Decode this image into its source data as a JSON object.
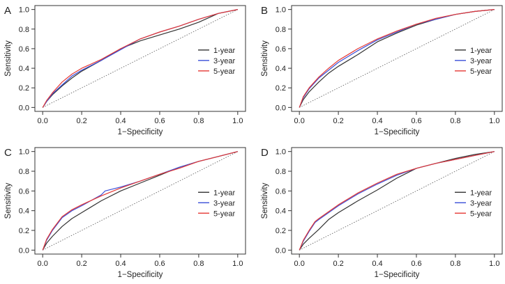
{
  "chart_data": [
    {
      "panel": "A",
      "type": "line",
      "xlabel": "1−Specificity",
      "ylabel": "Sensitivity",
      "xlim": [
        0,
        1
      ],
      "ylim": [
        0,
        1
      ],
      "xticks": [
        "0.0",
        "0.2",
        "0.4",
        "0.6",
        "0.8",
        "1.0"
      ],
      "yticks": [
        "0.0",
        "0.2",
        "0.4",
        "0.6",
        "0.8",
        "1.0"
      ],
      "grid": false,
      "legend": "right",
      "reference_line": "diagonal-dotted",
      "series": [
        {
          "name": "1-year",
          "color": "#333333",
          "x": [
            0,
            0.02,
            0.05,
            0.1,
            0.15,
            0.2,
            0.3,
            0.4,
            0.5,
            0.6,
            0.7,
            0.8,
            0.9,
            1.0
          ],
          "y": [
            0,
            0.06,
            0.13,
            0.22,
            0.3,
            0.37,
            0.48,
            0.6,
            0.68,
            0.74,
            0.8,
            0.87,
            0.96,
            1.0
          ]
        },
        {
          "name": "3-year",
          "color": "#3b4fd8",
          "x": [
            0,
            0.02,
            0.05,
            0.1,
            0.15,
            0.2,
            0.3,
            0.4,
            0.5,
            0.6,
            0.7,
            0.8,
            0.9,
            1.0
          ],
          "y": [
            0,
            0.06,
            0.14,
            0.23,
            0.32,
            0.38,
            0.48,
            0.59,
            0.7,
            0.77,
            0.83,
            0.9,
            0.96,
            1.0
          ]
        },
        {
          "name": "5-year",
          "color": "#e53935",
          "x": [
            0,
            0.02,
            0.05,
            0.1,
            0.15,
            0.2,
            0.3,
            0.4,
            0.5,
            0.6,
            0.7,
            0.8,
            0.9,
            1.0
          ],
          "y": [
            0,
            0.07,
            0.15,
            0.26,
            0.34,
            0.4,
            0.49,
            0.6,
            0.7,
            0.77,
            0.83,
            0.9,
            0.96,
            1.0
          ]
        }
      ]
    },
    {
      "panel": "B",
      "type": "line",
      "xlabel": "1−Specificity",
      "ylabel": "Sensitivity",
      "xlim": [
        0,
        1
      ],
      "ylim": [
        0,
        1
      ],
      "xticks": [
        "0.0",
        "0.2",
        "0.4",
        "0.6",
        "0.8",
        "1.0"
      ],
      "yticks": [
        "0.0",
        "0.2",
        "0.4",
        "0.6",
        "0.8",
        "1.0"
      ],
      "grid": false,
      "legend": "right",
      "reference_line": "diagonal-dotted",
      "series": [
        {
          "name": "1-year",
          "color": "#333333",
          "x": [
            0,
            0.02,
            0.05,
            0.1,
            0.15,
            0.2,
            0.3,
            0.4,
            0.5,
            0.6,
            0.7,
            0.8,
            0.9,
            1.0
          ],
          "y": [
            0,
            0.08,
            0.16,
            0.26,
            0.35,
            0.42,
            0.54,
            0.67,
            0.76,
            0.84,
            0.9,
            0.95,
            0.98,
            1.0
          ]
        },
        {
          "name": "3-year",
          "color": "#3b4fd8",
          "x": [
            0,
            0.02,
            0.05,
            0.1,
            0.15,
            0.2,
            0.3,
            0.4,
            0.5,
            0.6,
            0.7,
            0.8,
            0.9,
            1.0
          ],
          "y": [
            0,
            0.1,
            0.19,
            0.3,
            0.38,
            0.46,
            0.58,
            0.69,
            0.77,
            0.85,
            0.9,
            0.95,
            0.98,
            1.0
          ]
        },
        {
          "name": "5-year",
          "color": "#e53935",
          "x": [
            0,
            0.02,
            0.05,
            0.1,
            0.15,
            0.2,
            0.3,
            0.4,
            0.5,
            0.6,
            0.7,
            0.8,
            0.9,
            1.0
          ],
          "y": [
            0,
            0.11,
            0.2,
            0.31,
            0.4,
            0.48,
            0.6,
            0.7,
            0.78,
            0.85,
            0.91,
            0.95,
            0.98,
            1.0
          ]
        }
      ]
    },
    {
      "panel": "C",
      "type": "line",
      "xlabel": "1−Specificity",
      "ylabel": "Sensitivity",
      "xlim": [
        0,
        1
      ],
      "ylim": [
        0,
        1
      ],
      "xticks": [
        "0.0",
        "0.2",
        "0.4",
        "0.6",
        "0.8",
        "1.0"
      ],
      "yticks": [
        "0.0",
        "0.2",
        "0.4",
        "0.6",
        "0.8",
        "1.0"
      ],
      "grid": false,
      "legend": "right",
      "reference_line": "diagonal-dotted",
      "series": [
        {
          "name": "1-year",
          "color": "#333333",
          "x": [
            0,
            0.02,
            0.05,
            0.1,
            0.15,
            0.2,
            0.3,
            0.4,
            0.5,
            0.6,
            0.7,
            0.8,
            0.9,
            1.0
          ],
          "y": [
            0,
            0.07,
            0.14,
            0.24,
            0.32,
            0.38,
            0.5,
            0.6,
            0.68,
            0.76,
            0.84,
            0.9,
            0.95,
            1.0
          ]
        },
        {
          "name": "3-year",
          "color": "#3b4fd8",
          "x": [
            0,
            0.02,
            0.05,
            0.1,
            0.15,
            0.2,
            0.3,
            0.32,
            0.4,
            0.5,
            0.6,
            0.7,
            0.8,
            0.9,
            1.0
          ],
          "y": [
            0,
            0.1,
            0.2,
            0.33,
            0.4,
            0.45,
            0.56,
            0.6,
            0.64,
            0.7,
            0.77,
            0.84,
            0.9,
            0.95,
            1.0
          ]
        },
        {
          "name": "5-year",
          "color": "#e53935",
          "x": [
            0,
            0.02,
            0.05,
            0.1,
            0.15,
            0.2,
            0.3,
            0.4,
            0.5,
            0.6,
            0.7,
            0.8,
            0.9,
            1.0
          ],
          "y": [
            0,
            0.11,
            0.21,
            0.34,
            0.41,
            0.46,
            0.55,
            0.63,
            0.7,
            0.77,
            0.83,
            0.9,
            0.95,
            1.0
          ]
        }
      ]
    },
    {
      "panel": "D",
      "type": "line",
      "xlabel": "1−Specificity",
      "ylabel": "Sensitivity",
      "xlim": [
        0,
        1
      ],
      "ylim": [
        0,
        1
      ],
      "xticks": [
        "0.0",
        "0.2",
        "0.4",
        "0.6",
        "0.8",
        "1.0"
      ],
      "yticks": [
        "0.0",
        "0.2",
        "0.4",
        "0.6",
        "0.8",
        "1.0"
      ],
      "grid": false,
      "legend": "right",
      "reference_line": "diagonal-dotted",
      "series": [
        {
          "name": "1-year",
          "color": "#333333",
          "x": [
            0,
            0.02,
            0.05,
            0.1,
            0.15,
            0.2,
            0.3,
            0.4,
            0.5,
            0.6,
            0.7,
            0.8,
            0.9,
            1.0
          ],
          "y": [
            0,
            0.06,
            0.12,
            0.21,
            0.31,
            0.38,
            0.5,
            0.61,
            0.73,
            0.83,
            0.88,
            0.93,
            0.97,
            1.0
          ]
        },
        {
          "name": "3-year",
          "color": "#3b4fd8",
          "x": [
            0,
            0.02,
            0.05,
            0.08,
            0.1,
            0.15,
            0.2,
            0.3,
            0.4,
            0.5,
            0.6,
            0.7,
            0.8,
            0.9,
            1.0
          ],
          "y": [
            0,
            0.09,
            0.19,
            0.28,
            0.31,
            0.38,
            0.45,
            0.57,
            0.67,
            0.76,
            0.83,
            0.88,
            0.92,
            0.96,
            1.0
          ]
        },
        {
          "name": "5-year",
          "color": "#e53935",
          "x": [
            0,
            0.02,
            0.05,
            0.08,
            0.1,
            0.15,
            0.2,
            0.3,
            0.4,
            0.5,
            0.6,
            0.7,
            0.8,
            0.9,
            1.0
          ],
          "y": [
            0,
            0.1,
            0.2,
            0.29,
            0.32,
            0.39,
            0.46,
            0.58,
            0.68,
            0.77,
            0.83,
            0.88,
            0.92,
            0.96,
            1.0
          ]
        }
      ]
    }
  ]
}
